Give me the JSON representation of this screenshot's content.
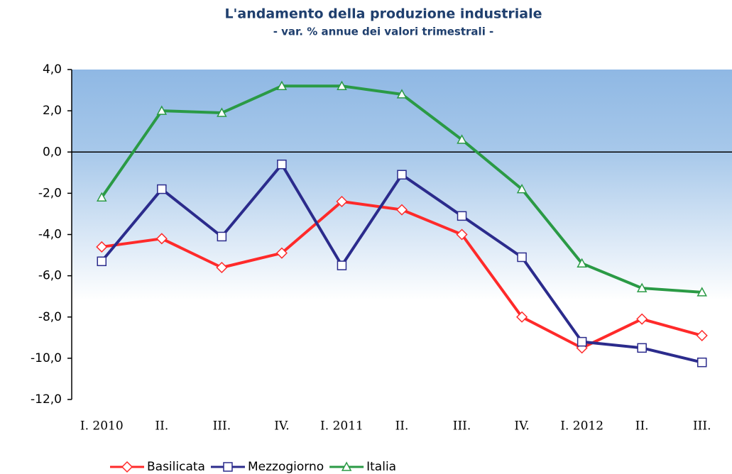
{
  "chart_data": {
    "type": "line",
    "title": "L'andamento della produzione industriale",
    "subtitle": "- var. % annue dei valori trimestrali -",
    "categories": [
      "I. 2010",
      "II.",
      "III.",
      "IV.",
      "I. 2011",
      "II.",
      "III.",
      "IV.",
      "I. 2012",
      "II.",
      "III."
    ],
    "series": [
      {
        "name": "Basilicata",
        "color": "#ff2a2a",
        "marker": "diamond",
        "values": [
          -4.6,
          -4.2,
          -5.6,
          -4.9,
          -2.4,
          -2.8,
          -4.0,
          -8.0,
          -9.5,
          -8.1,
          -8.9
        ]
      },
      {
        "name": "Mezzogiorno",
        "color": "#2b2b8c",
        "marker": "square",
        "values": [
          -5.3,
          -1.8,
          -4.1,
          -0.6,
          -5.5,
          -1.1,
          -3.1,
          -5.1,
          -9.2,
          -9.5,
          -10.2
        ]
      },
      {
        "name": "Italia",
        "color": "#2a9a45",
        "marker": "triangle",
        "values": [
          -2.2,
          2.0,
          1.9,
          3.2,
          3.2,
          2.8,
          0.6,
          -1.8,
          -5.4,
          -6.6,
          -6.8
        ]
      }
    ],
    "ylim": [
      -12,
      4
    ],
    "yticks": [
      {
        "value": 4,
        "label": "4,0"
      },
      {
        "value": 2,
        "label": "2,0"
      },
      {
        "value": 0,
        "label": "0,0"
      },
      {
        "value": -2,
        "label": "-2,0"
      },
      {
        "value": -4,
        "label": "-4,0"
      },
      {
        "value": -6,
        "label": "-6,0"
      },
      {
        "value": -8,
        "label": "-8,0"
      },
      {
        "value": -10,
        "label": "-10,0"
      },
      {
        "value": -12,
        "label": "-12,0"
      }
    ],
    "legend": "bottom"
  }
}
